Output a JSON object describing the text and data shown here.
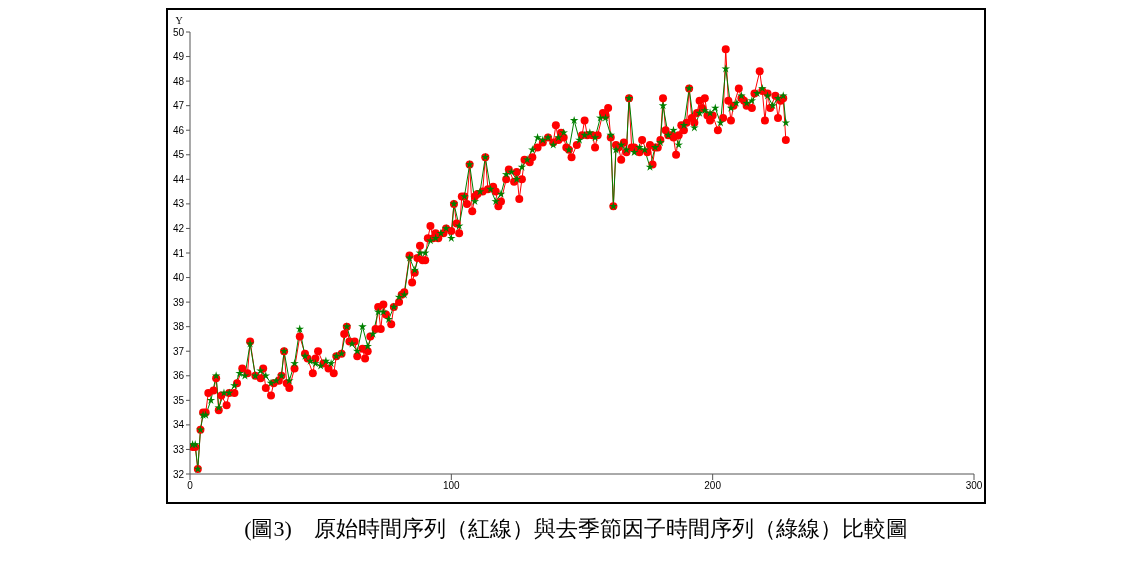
{
  "chart_data": {
    "type": "line",
    "ylabel": "Y",
    "xlim": [
      0,
      300
    ],
    "xticks": [
      0,
      100,
      200,
      300
    ],
    "ylim": [
      32,
      50
    ],
    "yticks": [
      32,
      33,
      34,
      35,
      36,
      37,
      38,
      39,
      40,
      41,
      42,
      43,
      44,
      45,
      46,
      47,
      48,
      49,
      50
    ],
    "grid": false,
    "annotations": [
      "(圖3)　原始時間序列（紅線）與去季節因子時間序列（綠線）比較圖"
    ],
    "series": [
      {
        "color": "#ff0000",
        "marker": "circle",
        "x": [
          1,
          2,
          3,
          4,
          5,
          6,
          7,
          9,
          10,
          11,
          12,
          14,
          15,
          17,
          18,
          20,
          22,
          23,
          25,
          27,
          28,
          29,
          31,
          32,
          34,
          35,
          36,
          37,
          38,
          40,
          42,
          44,
          45,
          47,
          48,
          49,
          51,
          53,
          55,
          56,
          58,
          59,
          60,
          61,
          63,
          64,
          66,
          67,
          68,
          69,
          71,
          72,
          73,
          74,
          75,
          77,
          78,
          80,
          81,
          82,
          84,
          85,
          86,
          87,
          88,
          89,
          90,
          91,
          92,
          93,
          94,
          95,
          97,
          98,
          100,
          101,
          102,
          103,
          104,
          105,
          106,
          107,
          108,
          109,
          110,
          112,
          113,
          114,
          116,
          117,
          118,
          119,
          121,
          122,
          124,
          125,
          126,
          127,
          128,
          130,
          131,
          133,
          135,
          137,
          139,
          140,
          141,
          142,
          143,
          144,
          145,
          146,
          148,
          150,
          151,
          152,
          154,
          155,
          156,
          158,
          159,
          160,
          161,
          162,
          163,
          164,
          165,
          166,
          167,
          168,
          169,
          170,
          172,
          173,
          175,
          176,
          177,
          178,
          179,
          180,
          181,
          182,
          183,
          184,
          185,
          186,
          187,
          188,
          189,
          190,
          191,
          192,
          193,
          194,
          195,
          196,
          197,
          198,
          199,
          200,
          202,
          204,
          205,
          206,
          207,
          208,
          210,
          211,
          212,
          213,
          215,
          216,
          218,
          219,
          220,
          221,
          222,
          224,
          225,
          226,
          227,
          228
        ],
        "values": [
          33.1,
          33.1,
          32.2,
          33.8,
          34.5,
          34.5,
          35.3,
          35.4,
          35.9,
          34.6,
          35.2,
          34.8,
          35.3,
          35.3,
          35.7,
          36.3,
          36.1,
          37.4,
          36.0,
          35.9,
          36.3,
          35.5,
          35.2,
          35.7,
          35.8,
          36.0,
          37.0,
          35.7,
          35.5,
          36.3,
          37.6,
          36.9,
          36.7,
          36.1,
          36.7,
          37.0,
          36.5,
          36.3,
          36.1,
          36.8,
          36.9,
          37.7,
          38.0,
          37.4,
          37.4,
          36.8,
          37.1,
          36.7,
          37.0,
          37.6,
          37.9,
          38.8,
          37.9,
          38.9,
          38.5,
          38.1,
          38.8,
          39.0,
          39.3,
          39.4,
          40.9,
          39.8,
          40.2,
          40.8,
          41.3,
          40.7,
          40.7,
          41.6,
          42.1,
          41.6,
          41.8,
          41.6,
          41.8,
          42.0,
          41.9,
          43.0,
          42.2,
          41.8,
          43.3,
          43.3,
          43.0,
          44.6,
          42.7,
          43.3,
          43.4,
          43.5,
          44.9,
          43.6,
          43.7,
          43.5,
          42.9,
          43.1,
          44.0,
          44.4,
          43.9,
          44.3,
          43.2,
          44.0,
          44.8,
          44.7,
          44.9,
          45.3,
          45.5,
          45.7,
          45.5,
          46.2,
          45.6,
          45.9,
          45.7,
          45.3,
          45.2,
          44.9,
          45.4,
          45.8,
          46.4,
          45.8,
          45.8,
          45.3,
          45.8,
          46.7,
          46.6,
          46.9,
          45.7,
          42.9,
          45.4,
          45.3,
          44.8,
          45.5,
          45.1,
          47.3,
          45.3,
          45.3,
          45.1,
          45.6,
          45.1,
          45.4,
          44.6,
          45.3,
          45.3,
          45.6,
          47.3,
          46.0,
          45.8,
          45.8,
          45.7,
          45.0,
          45.8,
          46.2,
          46.0,
          46.3,
          47.7,
          46.5,
          46.3,
          46.7,
          47.2,
          46.9,
          47.3,
          46.6,
          46.4,
          46.6,
          46.0,
          46.5,
          49.3,
          47.2,
          46.4,
          47.0,
          47.7,
          47.3,
          47.2,
          47.0,
          46.9,
          47.5,
          48.4,
          47.6,
          46.4,
          47.5,
          46.9,
          47.4,
          46.5,
          47.2,
          47.3,
          45.6
        ]
      },
      {
        "color": "#008000",
        "marker": "star",
        "x": [
          1,
          2,
          3,
          4,
          5,
          6,
          8,
          10,
          11,
          13,
          15,
          17,
          19,
          21,
          23,
          25,
          27,
          29,
          31,
          33,
          35,
          36,
          38,
          40,
          42,
          44,
          46,
          48,
          50,
          52,
          54,
          56,
          58,
          60,
          62,
          64,
          66,
          68,
          70,
          72,
          74,
          76,
          78,
          80,
          82,
          84,
          86,
          88,
          90,
          92,
          94,
          96,
          98,
          100,
          101,
          103,
          105,
          107,
          109,
          111,
          113,
          115,
          117,
          119,
          121,
          123,
          125,
          127,
          129,
          131,
          133,
          135,
          137,
          139,
          141,
          143,
          145,
          147,
          149,
          151,
          153,
          155,
          157,
          159,
          161,
          162,
          163,
          165,
          167,
          168,
          170,
          172,
          174,
          176,
          178,
          180,
          181,
          183,
          185,
          187,
          189,
          191,
          193,
          195,
          197,
          199,
          201,
          203,
          205,
          207,
          209,
          211,
          213,
          215,
          217,
          219,
          221,
          223,
          225,
          227,
          228
        ],
        "values": [
          33.2,
          33.2,
          32.2,
          33.8,
          34.4,
          34.4,
          35.0,
          36.0,
          34.7,
          35.3,
          35.3,
          35.6,
          36.1,
          36.0,
          37.3,
          36.0,
          36.2,
          36.0,
          35.7,
          35.8,
          36.0,
          37.0,
          35.8,
          36.5,
          37.9,
          36.8,
          36.6,
          36.5,
          36.4,
          36.6,
          36.5,
          36.8,
          36.9,
          38.0,
          37.3,
          37.0,
          38.0,
          37.2,
          37.7,
          38.6,
          38.6,
          38.3,
          38.8,
          39.2,
          39.3,
          40.8,
          40.3,
          41.0,
          41.0,
          41.5,
          41.6,
          41.8,
          42.0,
          41.6,
          43.0,
          42.1,
          43.3,
          44.6,
          43.1,
          43.5,
          44.9,
          43.6,
          43.1,
          43.4,
          44.2,
          44.3,
          44.0,
          44.5,
          44.8,
          45.2,
          45.7,
          45.6,
          45.7,
          45.4,
          45.7,
          45.9,
          45.2,
          46.4,
          45.6,
          45.8,
          45.9,
          45.7,
          46.5,
          46.5,
          45.8,
          42.9,
          45.2,
          45.4,
          45.2,
          47.3,
          45.1,
          45.3,
          45.2,
          44.5,
          45.3,
          45.5,
          47.0,
          45.8,
          46.0,
          45.4,
          46.2,
          47.7,
          46.1,
          46.7,
          46.8,
          46.7,
          46.9,
          46.3,
          48.5,
          46.9,
          47.1,
          47.4,
          47.1,
          47.2,
          47.5,
          47.7,
          47.4,
          47.0,
          47.3,
          47.4,
          46.3
        ]
      }
    ]
  }
}
